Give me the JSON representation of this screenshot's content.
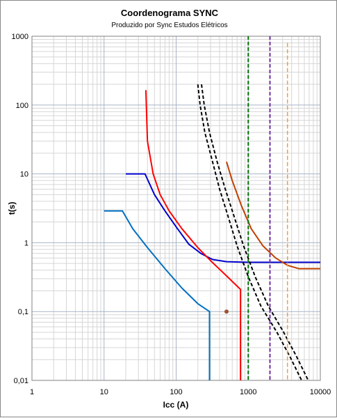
{
  "chart_data": {
    "type": "line",
    "title": "Coordenograma SYNC",
    "subtitle": "Produzido por Sync Estudos Elétricos",
    "xlabel": "Icc (A)",
    "ylabel": "t(s)",
    "xscale": "log",
    "yscale": "log",
    "xlim": [
      1,
      10000
    ],
    "ylim": [
      0.01,
      1000
    ],
    "x_ticks": [
      "1",
      "10",
      "100",
      "1000",
      "10000"
    ],
    "y_ticks": [
      "0,01",
      "0,1",
      "1",
      "10",
      "100",
      "1000"
    ],
    "grid": true,
    "legend": "none",
    "series": [
      {
        "color": "#0070C0",
        "style": "solid",
        "points": [
          [
            10,
            2.9
          ],
          [
            18,
            2.9
          ],
          [
            25,
            1.6
          ],
          [
            40,
            0.85
          ],
          [
            70,
            0.42
          ],
          [
            120,
            0.22
          ],
          [
            200,
            0.13
          ],
          [
            290,
            0.1
          ],
          [
            290,
            0.01
          ]
        ]
      },
      {
        "color": "#0000CC",
        "style": "solid",
        "points": [
          [
            20,
            10
          ],
          [
            37,
            10
          ],
          [
            50,
            5
          ],
          [
            70,
            2.9
          ],
          [
            100,
            1.7
          ],
          [
            150,
            0.95
          ],
          [
            220,
            0.7
          ],
          [
            320,
            0.57
          ],
          [
            500,
            0.53
          ],
          [
            1000,
            0.52
          ],
          [
            10000,
            0.52
          ]
        ]
      },
      {
        "color": "#FF0000",
        "style": "solid",
        "points": [
          [
            38,
            165
          ],
          [
            40,
            30
          ],
          [
            48,
            10
          ],
          [
            60,
            5
          ],
          [
            80,
            2.9
          ],
          [
            120,
            1.6
          ],
          [
            200,
            0.85
          ],
          [
            300,
            0.55
          ],
          [
            500,
            0.33
          ],
          [
            780,
            0.21
          ],
          [
            780,
            0.01
          ]
        ]
      },
      {
        "color": "#C04000",
        "style": "solid",
        "points": [
          [
            500,
            15
          ],
          [
            600,
            8
          ],
          [
            800,
            3.5
          ],
          [
            1100,
            1.6
          ],
          [
            1600,
            0.9
          ],
          [
            2400,
            0.6
          ],
          [
            3500,
            0.47
          ],
          [
            5000,
            0.42
          ],
          [
            10000,
            0.42
          ]
        ]
      },
      {
        "color": "#000000",
        "style": "dashed",
        "points": [
          [
            200,
            200
          ],
          [
            215,
            100
          ],
          [
            250,
            40
          ],
          [
            320,
            15
          ],
          [
            400,
            6
          ],
          [
            520,
            2.5
          ],
          [
            700,
            0.9
          ],
          [
            1000,
            0.32
          ],
          [
            1500,
            0.12
          ],
          [
            2500,
            0.05
          ],
          [
            3800,
            0.022
          ],
          [
            5500,
            0.01
          ]
        ]
      },
      {
        "color": "#000000",
        "style": "dashed",
        "points": [
          [
            225,
            200
          ],
          [
            245,
            100
          ],
          [
            290,
            40
          ],
          [
            370,
            15
          ],
          [
            480,
            6
          ],
          [
            630,
            2.5
          ],
          [
            860,
            0.9
          ],
          [
            1250,
            0.32
          ],
          [
            1900,
            0.12
          ],
          [
            3100,
            0.05
          ],
          [
            4700,
            0.022
          ],
          [
            6800,
            0.01
          ]
        ]
      },
      {
        "color": "#007000",
        "style": "dashed",
        "points": [
          [
            1000,
            1000
          ],
          [
            1000,
            0.01
          ]
        ]
      },
      {
        "color": "#7030A0",
        "style": "dashed",
        "points": [
          [
            2000,
            1000
          ],
          [
            2000,
            0.01
          ]
        ]
      },
      {
        "color": "#FF9933",
        "style": "dashed",
        "points": [
          [
            3500,
            800
          ],
          [
            3500,
            0.01
          ]
        ]
      }
    ],
    "markers": [
      {
        "color": "#A0522D",
        "x": 500,
        "y": 0.1
      }
    ]
  }
}
